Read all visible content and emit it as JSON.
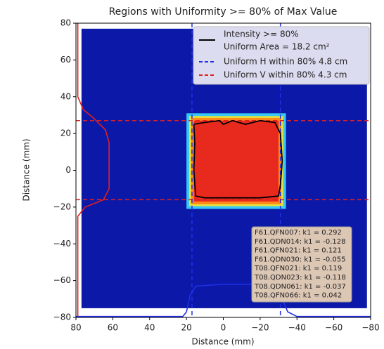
{
  "chart_data": {
    "type": "heatmap",
    "title": "Regions with Uniformity >= 80% of Max Value",
    "xlabel": "Distance (mm)",
    "ylabel": "Distance (mm)",
    "xlim": [
      80,
      -80
    ],
    "ylim": [
      -80,
      80
    ],
    "xticks": [
      80,
      60,
      40,
      20,
      0,
      {
        "value": -20,
        "label": "−20"
      },
      {
        "value": -40,
        "label": "−40"
      },
      {
        "value": -60,
        "label": "−60"
      },
      {
        "value": -80,
        "label": "−80"
      }
    ],
    "yticks": [
      80,
      60,
      40,
      20,
      0,
      {
        "value": -20,
        "label": "−20"
      },
      {
        "value": -40,
        "label": "−40"
      },
      {
        "value": -60,
        "label": "−60"
      },
      {
        "value": -80,
        "label": "−80"
      }
    ],
    "heatmap": [
      {
        "color": "#0c18a8",
        "xlim": [
          77,
          -78
        ],
        "ylim": [
          -75,
          77
        ]
      },
      {
        "color": "#38c8f5",
        "xlim": [
          20,
          -34
        ],
        "ylim": [
          -21,
          31
        ]
      },
      {
        "color": "#e8e23a",
        "xlim": [
          18.5,
          -32.5
        ],
        "ylim": [
          -19.5,
          29.5
        ]
      },
      {
        "color": "#ff8a1a",
        "xlim": [
          17.5,
          -31.5
        ],
        "ylim": [
          -18.5,
          28.5
        ]
      },
      {
        "color": "#e82a1e",
        "xlim": [
          16,
          -30
        ],
        "ylim": [
          -17,
          27
        ]
      }
    ],
    "series": [
      {
        "name": "Intensity >= 80%",
        "color": "#000000",
        "x": [
          16,
          10,
          2,
          0,
          -5,
          -12,
          -20,
          -28,
          -31,
          -32,
          -31,
          -30,
          -20,
          -5,
          10,
          15,
          16,
          15.5,
          16
        ],
        "y": [
          25,
          26,
          27,
          25,
          27,
          25,
          27,
          26,
          20,
          5,
          -8,
          -14,
          -15,
          -15,
          -15,
          -14,
          0,
          15,
          25
        ]
      },
      {
        "color": "#e02020",
        "x": [
          79,
          79,
          75,
          65,
          62,
          62,
          62,
          64,
          70,
          76,
          79,
          79
        ],
        "y": [
          -80,
          -25,
          -20,
          -16,
          -10,
          0,
          15,
          22,
          28,
          33,
          40,
          80
        ]
      },
      {
        "color": "#2030e8",
        "x": [
          80,
          22,
          20,
          18,
          15,
          0,
          -25,
          -30,
          -32,
          -35,
          -40,
          -80
        ],
        "y": [
          -79.5,
          -79.5,
          -77,
          -68,
          -63,
          -62,
          -62,
          -64,
          -70,
          -77,
          -79.5,
          -79.5
        ]
      }
    ],
    "legend_note": "Uniform Area = 18.2 cm²",
    "vlines": {
      "name": "Uniform H within 80% 4.8 cm",
      "color": "#2030e8",
      "x": [
        17,
        -31
      ]
    },
    "hlines": {
      "name": "Uniform V within 80% 4.3 cm",
      "color": "#e02020",
      "y": [
        27,
        -16
      ]
    },
    "annotation": [
      "F61.QFN007: k1 = 0.292",
      "F61.QDN014: k1 = -0.128",
      "F61.QFN021: k1 = 0.121",
      "F61.QDN030: k1 = -0.055",
      "T08.QFN021: k1 = 0.119",
      "T08.QDN023: k1 = -0.118",
      "T08.QDN061: k1 = -0.037",
      "T08.QFN066: k1 = 0.042"
    ]
  }
}
